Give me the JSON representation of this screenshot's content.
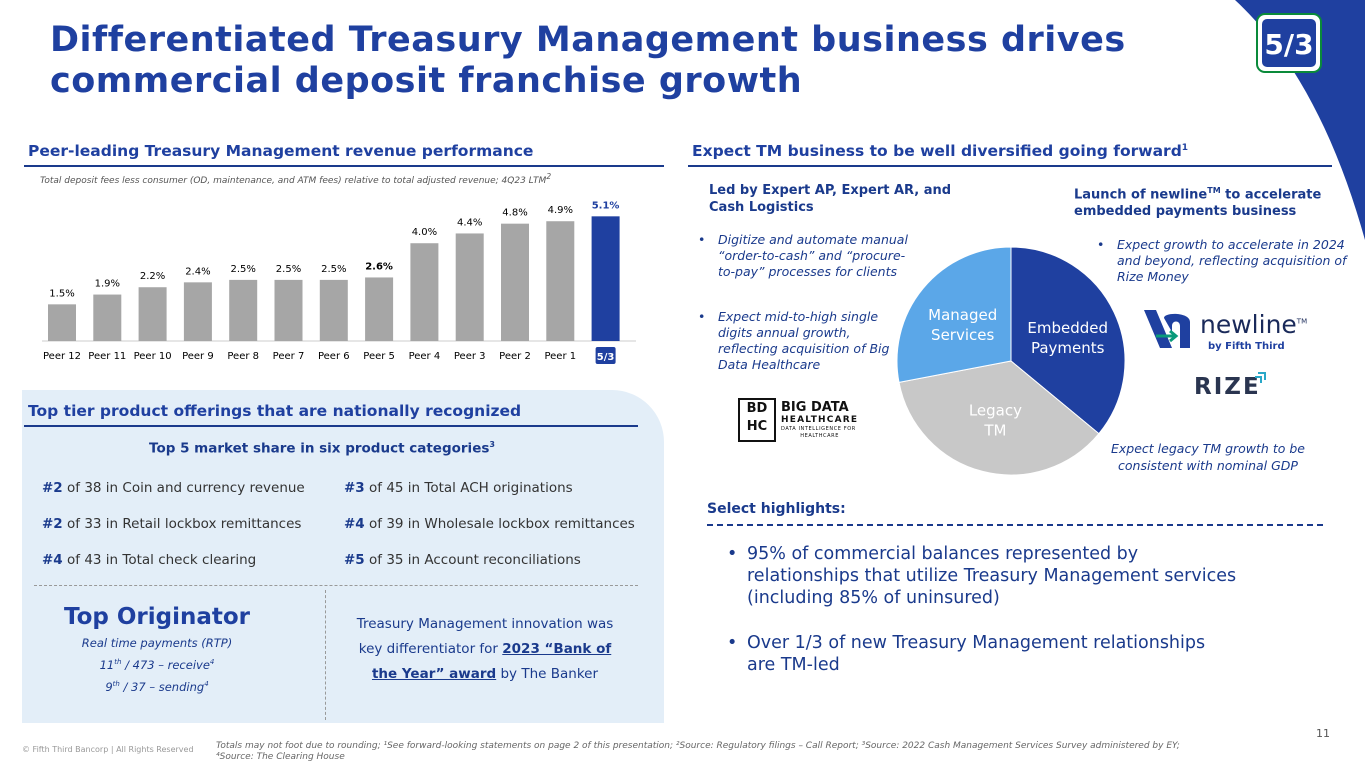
{
  "title_line1": "Differentiated Treasury Management business drives",
  "title_line2": "commercial deposit franchise growth",
  "logo_text": "5/3",
  "left": {
    "heading": "Peer-leading Treasury Management revenue performance",
    "note": "Total deposit fees less consumer (OD, maintenance, and ATM fees) relative to total adjusted revenue; 4Q23 LTM",
    "note_sup": "2"
  },
  "chart_data": {
    "type": "bar",
    "categories": [
      "Peer 12",
      "Peer 11",
      "Peer 10",
      "Peer 9",
      "Peer 8",
      "Peer 7",
      "Peer 6",
      "Peer 5",
      "Peer 4",
      "Peer 3",
      "Peer 2",
      "Peer 1",
      "5/3"
    ],
    "values": [
      1.5,
      1.9,
      2.2,
      2.4,
      2.5,
      2.5,
      2.5,
      2.6,
      4.0,
      4.4,
      4.8,
      4.9,
      5.1
    ],
    "labels": [
      "1.5%",
      "1.9%",
      "2.2%",
      "2.4%",
      "2.5%",
      "2.5%",
      "2.5%",
      "2.6%",
      "4.0%",
      "4.4%",
      "4.8%",
      "4.9%",
      "5.1%"
    ],
    "highlight_index": 12,
    "bold_label_indices": [
      7,
      12
    ],
    "colors": {
      "peer": "#a6a6a6",
      "highlight": "#1f40a0"
    },
    "ylim": [
      0,
      5.4
    ],
    "title": "",
    "xlabel": "",
    "ylabel": ""
  },
  "panel": {
    "heading": "Top tier product offerings that are nationally recognized",
    "sub": "Top 5 market share in six product categories",
    "sub_sup": "3",
    "ranks": [
      {
        "rank": "#2",
        "text": "of 38 in Coin and currency revenue"
      },
      {
        "rank": "#3",
        "text": "of 45 in Total ACH originations"
      },
      {
        "rank": "#2",
        "text": "of 33 in Retail lockbox remittances"
      },
      {
        "rank": "#4",
        "text": "of 39 in Wholesale lockbox remittances"
      },
      {
        "rank": "#4",
        "text": "of 43 in Total check clearing"
      },
      {
        "rank": "#5",
        "text": "of 35 in Account reconciliations"
      }
    ],
    "originator_title": "Top Originator",
    "originator_sub": "Real time payments (RTP)",
    "originator_l1_a": "11",
    "originator_l1_sup": "th",
    "originator_l1_b": " / 473 – receive",
    "originator_l1_sup2": "4",
    "originator_l2_a": "9",
    "originator_l2_sup": "th",
    "originator_l2_b": " / 37 – sending",
    "originator_l2_sup2": "4",
    "award_l1": "Treasury Management innovation was",
    "award_l2_a": "key differentiator for ",
    "award_link_1": "2023 “Bank of",
    "award_link_2": "the Year” award",
    "award_l3_b": " by The Banker"
  },
  "right": {
    "heading": "Expect TM business to be well diversified going forward",
    "heading_sup": "1",
    "col1_head": "Led by Expert AP, Expert AR, and Cash Logistics",
    "col1_bullets": [
      "Digitize  and automate manual “order-to-cash” and “procure-to-pay” processes for clients",
      "Expect mid-to-high single digits annual growth, reflecting acquisition of Big Data Healthcare"
    ],
    "col2_head_a": "Launch of newline",
    "col2_head_tm": "TM",
    "col2_head_b": " to accelerate embedded payments business",
    "col2_bullets": [
      "Expect growth to accelerate in 2024 and beyond, reflecting acquisition of Rize Money"
    ],
    "pie": {
      "slices": [
        {
          "name": "Embedded Payments",
          "line1": "Embedded",
          "line2": "Payments",
          "value": 36,
          "color": "#1f40a0"
        },
        {
          "name": "Legacy TM",
          "line1": "Legacy",
          "line2": "TM",
          "value": 36,
          "color": "#c8c8c8"
        },
        {
          "name": "Managed Services",
          "line1": "Managed",
          "line2": "Services",
          "value": 28,
          "color": "#5ba7e8"
        }
      ]
    },
    "legacy_note_l1": "Expect legacy TM growth to be",
    "legacy_note_l2": "consistent with nominal GDP",
    "bdh_logo_l1": "BD",
    "bdh_logo_l2": "HC",
    "bdh_text1": "BIG DATA",
    "bdh_text2": "HEALTHCARE",
    "bdh_text3": "DATA INTELLIGENCE FOR",
    "bdh_text4": "HEALTHCARE",
    "newline_text": "newline",
    "newline_tm": "TM",
    "newline_by": "by Fifth Third",
    "rize_text": "RIZE",
    "highlights_head": "Select highlights:",
    "highlights": [
      {
        "l1": "95% of commercial balances represented by",
        "l2": "relationships that utilize Treasury Management services",
        "l3": "(including 85% of uninsured)"
      },
      {
        "l1": "Over 1/3 of new Treasury Management relationships",
        "l2": "are TM-led",
        "l3": ""
      }
    ]
  },
  "page_number": "11",
  "copyright": "© Fifth Third Bancorp | All Rights Reserved",
  "footnote_l1": "Totals may not foot due to rounding; ¹See forward-looking statements on page 2 of this presentation; ²Source: Regulatory filings – Call Report; ³Source: 2022 Cash Management Services Survey administered by EY;",
  "footnote_l2": "⁴Source: The Clearing House",
  "bullet_char": "•"
}
